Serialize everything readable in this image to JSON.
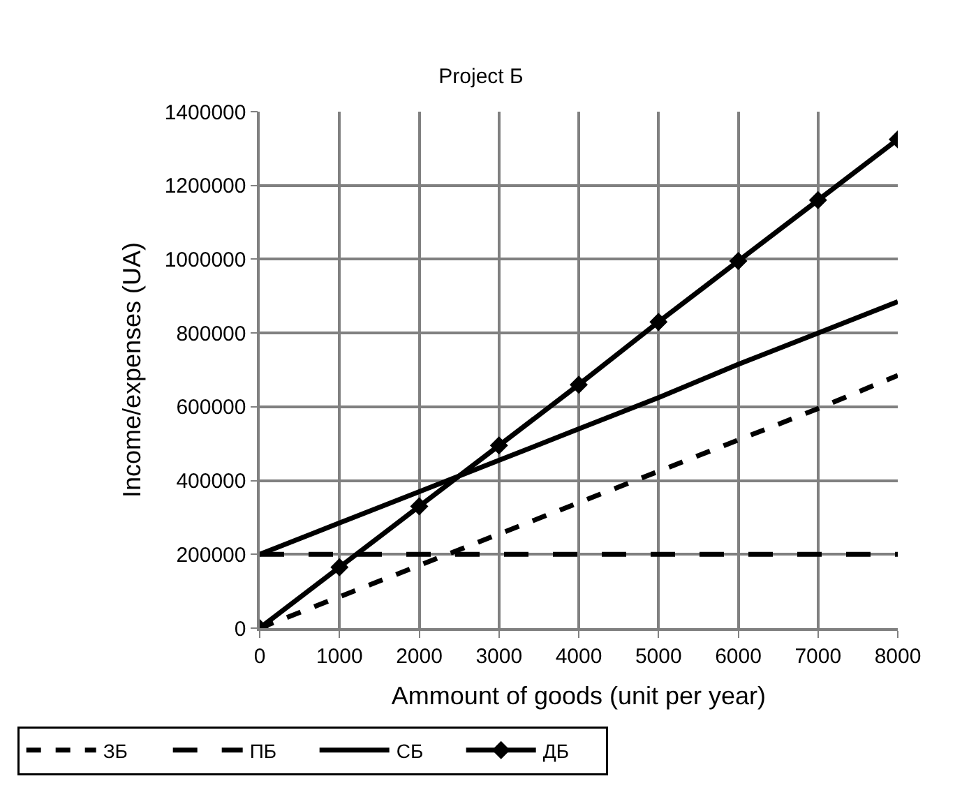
{
  "chart_data": {
    "type": "line",
    "title": "Project Б",
    "xlabel": "Ammount of goods (unit per year)",
    "ylabel": "Income/expenses (UA)",
    "x": [
      0,
      1000,
      2000,
      3000,
      4000,
      5000,
      6000,
      7000,
      8000
    ],
    "series": [
      {
        "name": "ЗБ",
        "color": "#000000",
        "line_style": "dashed",
        "marker": "none",
        "values": [
          0,
          85000,
          170000,
          255000,
          340000,
          425000,
          510000,
          595000,
          685000
        ]
      },
      {
        "name": "ПБ",
        "color": "#000000",
        "line_style": "dashed",
        "marker": "none",
        "values": [
          200000,
          200000,
          200000,
          200000,
          200000,
          200000,
          200000,
          200000,
          200000
        ]
      },
      {
        "name": "СБ",
        "color": "#000000",
        "line_style": "solid",
        "marker": "none",
        "values": [
          200000,
          285000,
          370000,
          455000,
          540000,
          625000,
          715000,
          800000,
          885000
        ]
      },
      {
        "name": "ДБ",
        "color": "#000000",
        "line_style": "solid",
        "marker": "diamond",
        "values": [
          0,
          165000,
          330000,
          495000,
          660000,
          830000,
          995000,
          1160000,
          1325000
        ]
      }
    ],
    "xlim": [
      0,
      8000
    ],
    "xticks": [
      0,
      1000,
      2000,
      3000,
      4000,
      5000,
      6000,
      7000,
      8000
    ],
    "ylim": [
      0,
      1400000
    ],
    "yticks": [
      0,
      200000,
      400000,
      600000,
      800000,
      1000000,
      1200000,
      1400000
    ],
    "grid": true,
    "legend": "bottom left"
  }
}
